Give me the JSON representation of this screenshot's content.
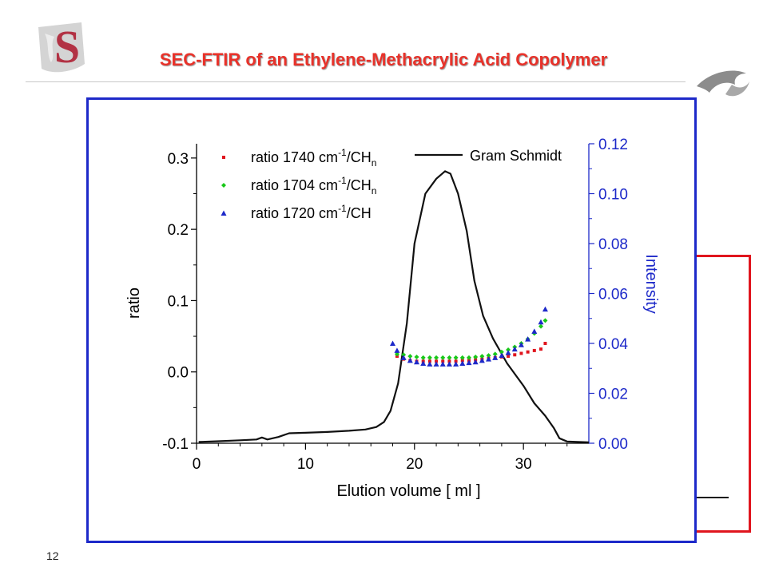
{
  "slide": {
    "title": "SEC-FTIR of an Ethylene-Methacrylic Acid Copolymer",
    "page_number": "12",
    "logo_letter": "S",
    "colors": {
      "title": "#e8322a",
      "frame_blue": "#1d29c9",
      "frame_red": "#e0151e"
    }
  },
  "chart_data": {
    "type": "scatter",
    "xlabel": "Elution volume [ ml ]",
    "ylabel": "ratio",
    "y2label": "Intensity",
    "xlim": [
      0,
      36
    ],
    "ylim": [
      -0.1,
      0.32
    ],
    "y2lim": [
      0,
      0.12
    ],
    "xticks": [
      0,
      10,
      20,
      30
    ],
    "xtick_labels": [
      "0",
      "10",
      "20",
      "30"
    ],
    "yticks": [
      -0.1,
      0.0,
      0.1,
      0.2,
      0.3
    ],
    "ytick_labels": [
      "-0.1",
      "0.0",
      "0.1",
      "0.2",
      "0.3"
    ],
    "y2ticks": [
      0.0,
      0.02,
      0.04,
      0.06,
      0.08,
      0.1,
      0.12
    ],
    "y2tick_labels": [
      "0.00",
      "0.02",
      "0.04",
      "0.06",
      "0.08",
      "0.10",
      "0.12"
    ],
    "legend_position": "top-left",
    "grid": false,
    "series": [
      {
        "name": "ratio 1740 cm",
        "sup": "-1",
        "suffix": "/CH",
        "sub": "n",
        "color": "#e0151e",
        "marker": "square",
        "axis": "left",
        "x": [
          18.4,
          19.0,
          19.6,
          20.2,
          20.8,
          21.4,
          22.0,
          22.6,
          23.2,
          23.8,
          24.4,
          25.0,
          25.6,
          26.2,
          26.8,
          27.4,
          28.0,
          28.6,
          29.2,
          29.8,
          30.4,
          31.0,
          31.6,
          32.0
        ],
        "y": [
          0.022,
          0.018,
          0.016,
          0.015,
          0.015,
          0.015,
          0.015,
          0.015,
          0.015,
          0.015,
          0.016,
          0.016,
          0.017,
          0.018,
          0.019,
          0.02,
          0.021,
          0.022,
          0.024,
          0.026,
          0.028,
          0.03,
          0.032,
          0.04
        ]
      },
      {
        "name": "ratio 1704 cm",
        "sup": "-1",
        "suffix": "/CH",
        "sub": "n",
        "color": "#18c818",
        "marker": "diamond",
        "axis": "left",
        "x": [
          18.4,
          19.0,
          19.6,
          20.2,
          20.8,
          21.4,
          22.0,
          22.6,
          23.2,
          23.8,
          24.4,
          25.0,
          25.6,
          26.2,
          26.8,
          27.4,
          28.0,
          28.6,
          29.2,
          29.8,
          30.4,
          31.0,
          31.6,
          32.0
        ],
        "y": [
          0.025,
          0.024,
          0.022,
          0.021,
          0.02,
          0.02,
          0.02,
          0.02,
          0.02,
          0.02,
          0.02,
          0.02,
          0.021,
          0.022,
          0.023,
          0.025,
          0.028,
          0.031,
          0.035,
          0.04,
          0.046,
          0.054,
          0.064,
          0.072
        ]
      },
      {
        "name": "ratio 1720 cm",
        "sup": "-1",
        "suffix": "/CH",
        "sub": "",
        "color": "#1d29c9",
        "marker": "triangle",
        "axis": "left",
        "x": [
          18.0,
          18.4,
          19.0,
          19.6,
          20.2,
          20.8,
          21.4,
          22.0,
          22.6,
          23.2,
          23.8,
          24.4,
          25.0,
          25.6,
          26.2,
          26.8,
          27.4,
          28.0,
          28.6,
          29.2,
          29.8,
          30.4,
          31.0,
          31.6,
          32.0
        ],
        "y": [
          0.04,
          0.03,
          0.02,
          0.016,
          0.014,
          0.012,
          0.011,
          0.011,
          0.011,
          0.011,
          0.011,
          0.012,
          0.013,
          0.014,
          0.016,
          0.018,
          0.02,
          0.023,
          0.027,
          0.032,
          0.038,
          0.046,
          0.057,
          0.07,
          0.088
        ]
      },
      {
        "name": "Gram Schmidt",
        "color": "#111111",
        "marker": "line",
        "axis": "right",
        "x": [
          0.2,
          2,
          4,
          5.5,
          6,
          6.5,
          7.5,
          8.5,
          10,
          12,
          14,
          15.5,
          16.5,
          17.2,
          17.8,
          18.5,
          19.3,
          20,
          21,
          22,
          22.8,
          23.3,
          24,
          24.8,
          25.5,
          26.3,
          27.2,
          28.5,
          30,
          31,
          32,
          32.8,
          33.3,
          34,
          35,
          36
        ],
        "y": [
          0.0005,
          0.0008,
          0.0012,
          0.0015,
          0.0023,
          0.0015,
          0.0025,
          0.004,
          0.0042,
          0.0045,
          0.005,
          0.0055,
          0.0065,
          0.0085,
          0.013,
          0.024,
          0.048,
          0.08,
          0.1,
          0.106,
          0.109,
          0.108,
          0.1,
          0.085,
          0.065,
          0.051,
          0.042,
          0.032,
          0.023,
          0.016,
          0.011,
          0.006,
          0.002,
          0.0007,
          0.0005,
          0.0004
        ]
      }
    ]
  }
}
